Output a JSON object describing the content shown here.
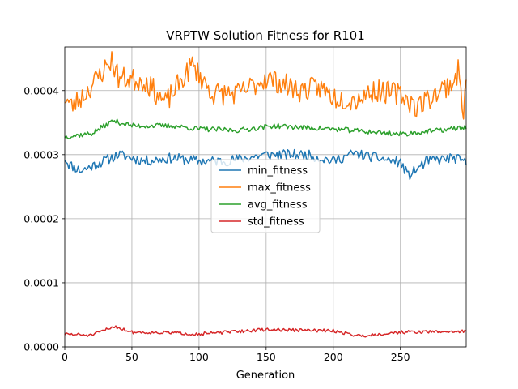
{
  "chart_data": {
    "type": "line",
    "title": "VRPTW Solution Fitness for R101",
    "xlabel": "Generation",
    "ylabel": "",
    "xlim": [
      0,
      299
    ],
    "ylim": [
      0,
      0.000468
    ],
    "xticks": [
      0,
      50,
      100,
      150,
      200,
      250
    ],
    "yticks": [
      0,
      0.0001,
      0.0002,
      0.0003,
      0.0004
    ],
    "ytick_labels": [
      "0.0000",
      "0.0001",
      "0.0002",
      "0.0003",
      "0.0004"
    ],
    "grid": true,
    "legend_position": "center",
    "series": [
      {
        "name": "min_fitness",
        "color": "#1f77b4",
        "base": 0.00029,
        "noise": 8e-06,
        "seed": 11,
        "anchors": [
          [
            0,
            0.000295
          ],
          [
            3,
            0.000285
          ],
          [
            12,
            0.000275
          ],
          [
            18,
            0.00028
          ],
          [
            40,
            0.0003
          ],
          [
            60,
            0.00029
          ],
          [
            80,
            0.000295
          ],
          [
            100,
            0.00029
          ],
          [
            120,
            0.00029
          ],
          [
            150,
            0.0003
          ],
          [
            180,
            0.0003
          ],
          [
            200,
            0.00029
          ],
          [
            215,
            0.000302
          ],
          [
            250,
            0.000288
          ],
          [
            256,
            0.000267
          ],
          [
            270,
            0.00029
          ],
          [
            290,
            0.000295
          ],
          [
            299,
            0.000287
          ]
        ]
      },
      {
        "name": "max_fitness",
        "color": "#ff7f0e",
        "base": 0.0004,
        "noise": 1.8e-05,
        "seed": 23,
        "anchors": [
          [
            0,
            0.00039
          ],
          [
            5,
            0.000375
          ],
          [
            15,
            0.000395
          ],
          [
            35,
            0.000448
          ],
          [
            40,
            0.00042
          ],
          [
            60,
            0.000415
          ],
          [
            75,
            0.00038
          ],
          [
            95,
            0.00044
          ],
          [
            110,
            0.000395
          ],
          [
            130,
            0.000395
          ],
          [
            150,
            0.00042
          ],
          [
            175,
            0.0004
          ],
          [
            190,
            0.000405
          ],
          [
            200,
            0.00039
          ],
          [
            215,
            0.000385
          ],
          [
            230,
            0.0004
          ],
          [
            250,
            0.000395
          ],
          [
            262,
            0.000375
          ],
          [
            290,
            0.000415
          ],
          [
            293,
            0.00043
          ],
          [
            297,
            0.00037
          ],
          [
            299,
            0.00041
          ]
        ]
      },
      {
        "name": "avg_fitness",
        "color": "#2ca02c",
        "base": 0.00034,
        "noise": 4e-06,
        "seed": 37,
        "anchors": [
          [
            0,
            0.000328
          ],
          [
            20,
            0.000333
          ],
          [
            36,
            0.000353
          ],
          [
            50,
            0.000345
          ],
          [
            80,
            0.000345
          ],
          [
            100,
            0.00034
          ],
          [
            130,
            0.000338
          ],
          [
            155,
            0.000345
          ],
          [
            200,
            0.00034
          ],
          [
            250,
            0.000332
          ],
          [
            280,
            0.000338
          ],
          [
            299,
            0.000343
          ]
        ]
      },
      {
        "name": "std_fitness",
        "color": "#d62728",
        "base": 2.2e-05,
        "noise": 2.5e-06,
        "seed": 51,
        "anchors": [
          [
            0,
            2e-05
          ],
          [
            20,
            1.8e-05
          ],
          [
            37,
            3.2e-05
          ],
          [
            50,
            2.3e-05
          ],
          [
            80,
            2.2e-05
          ],
          [
            100,
            2e-05
          ],
          [
            150,
            2.7e-05
          ],
          [
            200,
            2.5e-05
          ],
          [
            220,
            1.7e-05
          ],
          [
            250,
            2.3e-05
          ],
          [
            299,
            2.4e-05
          ]
        ]
      }
    ]
  }
}
